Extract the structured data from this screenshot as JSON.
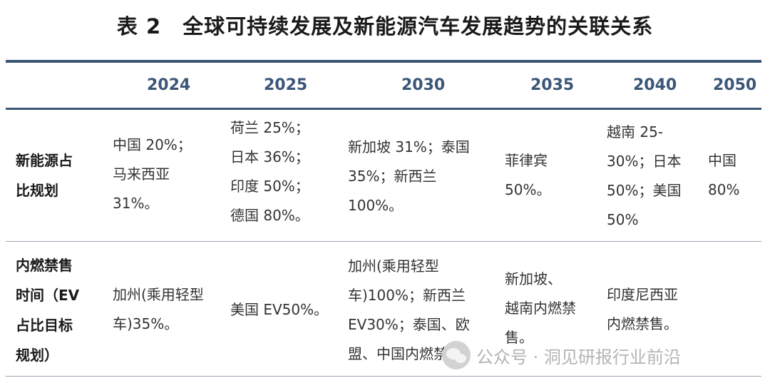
{
  "title": "表 2　全球可持续发展及新能源汽车发展趋势的关联关系",
  "years": [
    "2024",
    "2025",
    "2030",
    "2035",
    "2040",
    "2050"
  ],
  "rows": [
    {
      "label": "新能源占\n比规划",
      "cells": [
        "中国 20%；\n马来西亚\n31%。",
        "荷兰 25%；\n日本 36%；\n印度 50%；\n德国 80%。",
        "新加坡 31%；泰国\n35%；新西兰\n100%。",
        "菲律宾\n50%。",
        "越南 25-\n30%；日本\n50%；美国\n50%",
        "中国\n80%"
      ]
    },
    {
      "label": "内燃禁售\n时间（EV\n占比目标\n规划）",
      "cells": [
        "加州(乘用轻型\n车)35%。",
        "美国 EV50%。",
        "加州(乘用轻型\n车)100%；新西兰\nEV30%；泰国、欧\n盟、中国内燃禁售",
        "新加坡、\n越南内燃禁\n售。",
        "印度尼西亚\n内燃禁售。",
        ""
      ]
    }
  ],
  "watermark": "公众号 · 洞见研报行业前沿",
  "colors": {
    "rule": "#3c5675",
    "year": "#3a5678"
  }
}
